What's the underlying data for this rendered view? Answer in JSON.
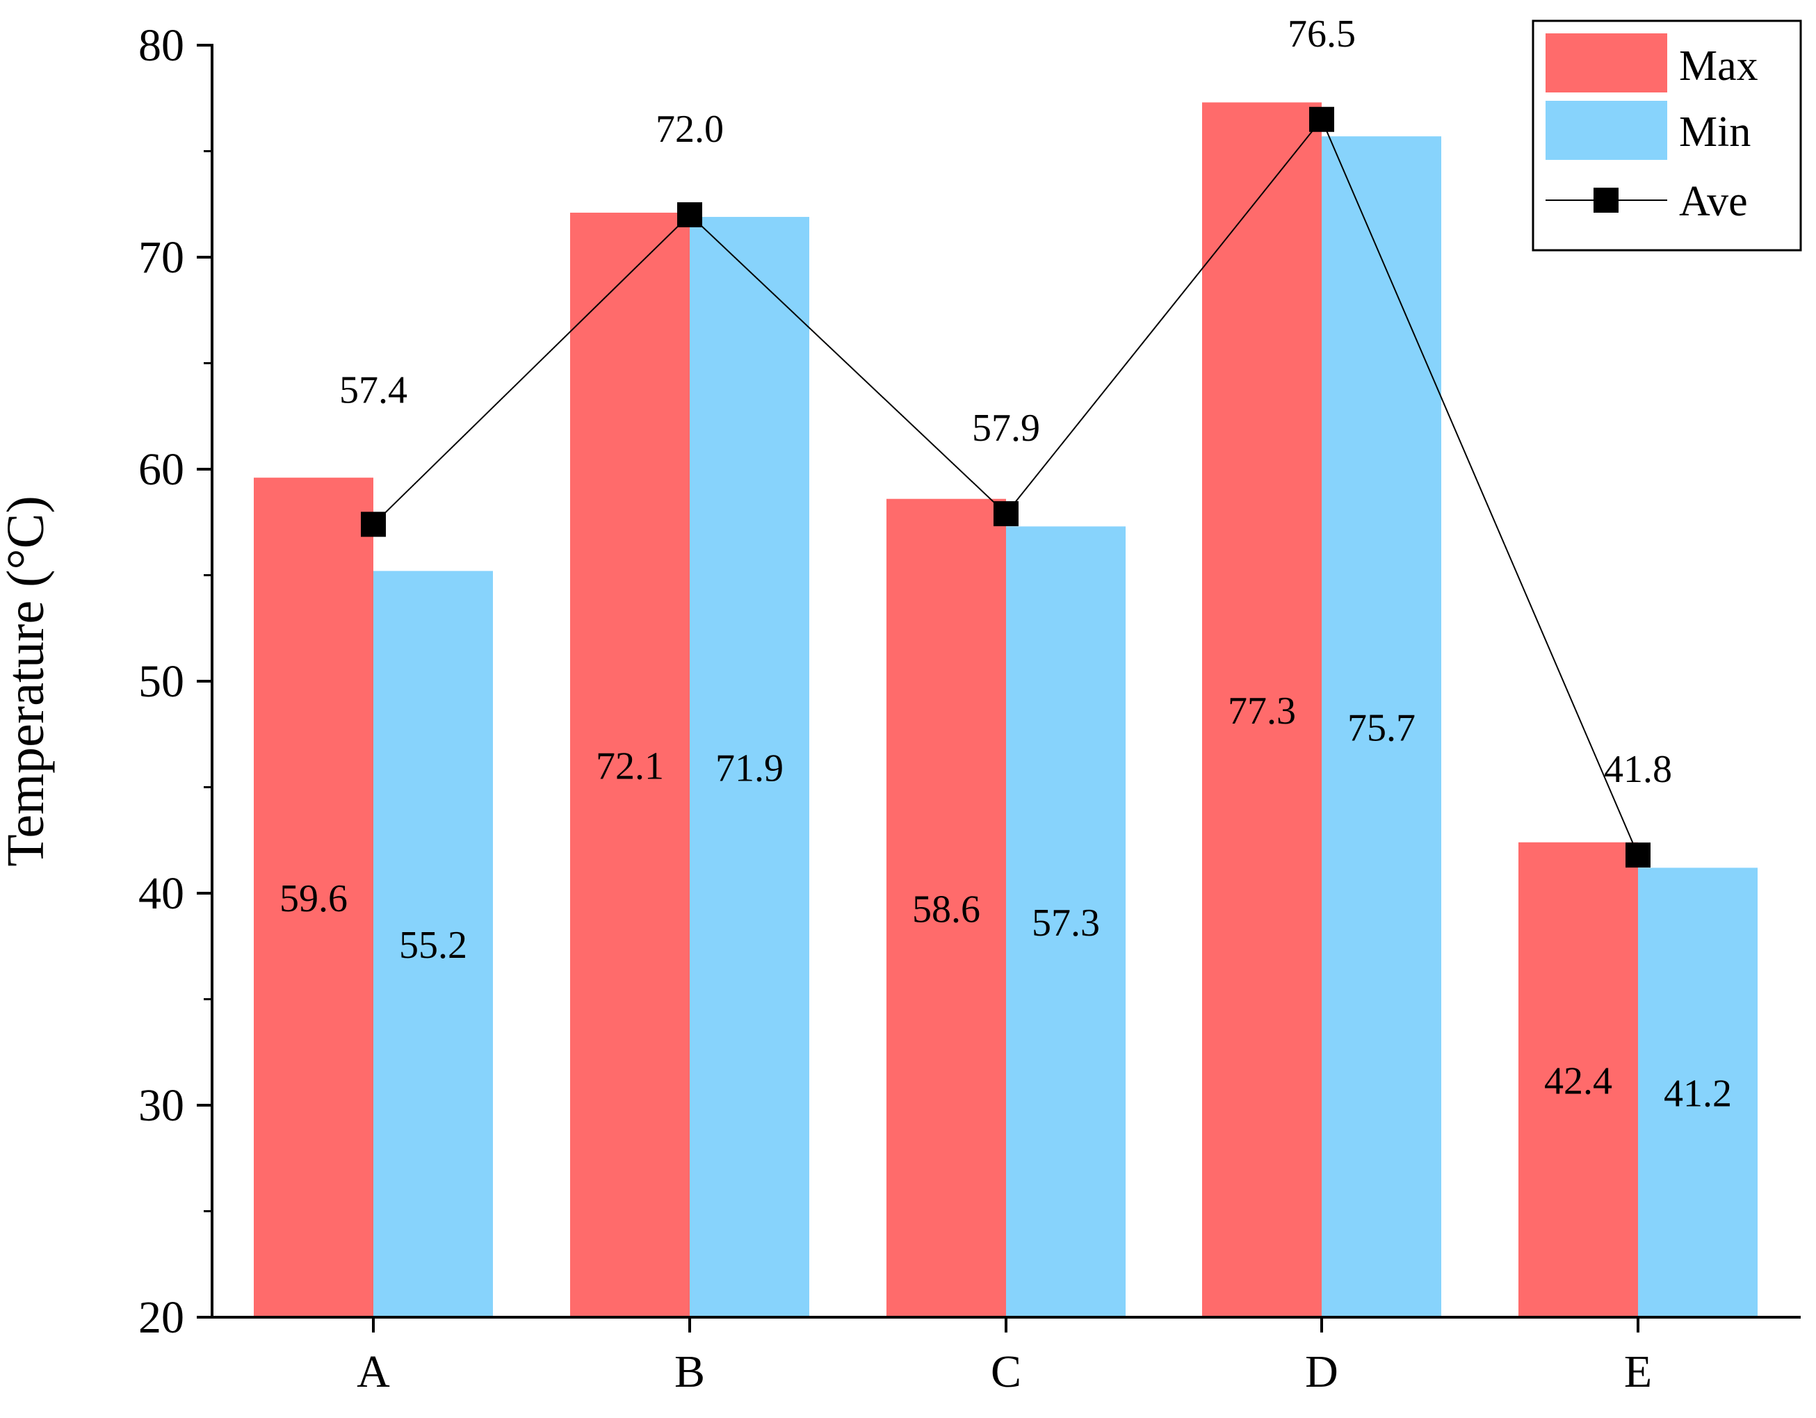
{
  "chart_data": {
    "type": "bar+line",
    "title": "",
    "xlabel": "",
    "ylabel": "Temperature (°C)",
    "ylim": [
      20,
      80
    ],
    "yticks": [
      20,
      30,
      40,
      50,
      60,
      70,
      80
    ],
    "categories": [
      "A",
      "B",
      "C",
      "D",
      "E"
    ],
    "series": [
      {
        "name": "Max",
        "kind": "bar",
        "color": "#ff6b6b",
        "values": [
          59.6,
          72.1,
          58.6,
          77.3,
          42.4
        ],
        "labels": [
          "59.6",
          "72.1",
          "58.6",
          "77.3",
          "42.4"
        ]
      },
      {
        "name": "Min",
        "kind": "bar",
        "color": "#87d3fc",
        "values": [
          55.2,
          71.9,
          57.3,
          75.7,
          41.2
        ],
        "labels": [
          "55.2",
          "71.9",
          "57.3",
          "75.7",
          "41.2"
        ]
      },
      {
        "name": "Ave",
        "kind": "line",
        "color": "#000000",
        "values": [
          57.4,
          72.0,
          57.9,
          76.5,
          41.8
        ],
        "labels": [
          "57.4",
          "72.0",
          "57.9",
          "76.5",
          "41.8"
        ]
      }
    ],
    "legend_position": "top-right",
    "grid": false
  }
}
